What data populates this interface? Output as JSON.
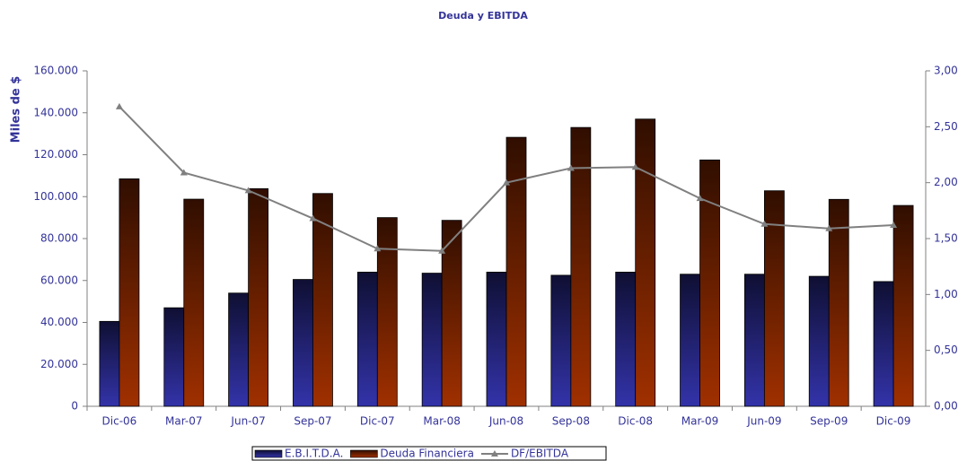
{
  "chart_data": {
    "type": "bar",
    "title": "Deuda y EBITDA",
    "y_label": "Miles de $",
    "categories": [
      "Dic-06",
      "Mar-07",
      "Jun-07",
      "Sep-07",
      "Dic-07",
      "Mar-08",
      "Jun-08",
      "Sep-08",
      "Dic-08",
      "Mar-09",
      "Jun-09",
      "Sep-09",
      "Dic-09"
    ],
    "series": [
      {
        "name": "E.B.I.T.D.A.",
        "type": "bar",
        "color": "#3333aa",
        "values": [
          40500,
          47000,
          54000,
          60500,
          64000,
          63500,
          64000,
          62500,
          64000,
          63000,
          63000,
          62000,
          59500
        ]
      },
      {
        "name": "Deuda Financiera",
        "type": "bar",
        "color": "#a03000",
        "values": [
          108500,
          98800,
          103800,
          101500,
          90000,
          88700,
          128300,
          133000,
          137000,
          117500,
          102800,
          98700,
          95800
        ]
      },
      {
        "name": "DF/EBITDA",
        "type": "line",
        "axis": "y2",
        "color": "#808080",
        "values": [
          2.68,
          2.09,
          1.93,
          1.68,
          1.41,
          1.39,
          2.0,
          2.13,
          2.14,
          1.86,
          1.63,
          1.59,
          1.62
        ]
      }
    ],
    "ylim": [
      0,
      160000
    ],
    "yticks": [
      0,
      {
        "value": 20000,
        "label": "20.000"
      },
      {
        "value": 40000,
        "label": "40.000"
      },
      {
        "value": 60000,
        "label": "60.000"
      },
      {
        "value": 80000,
        "label": "80.000"
      },
      {
        "value": 100000,
        "label": "100.000"
      },
      {
        "value": 120000,
        "label": "120.000"
      },
      {
        "value": 140000,
        "label": "140.000"
      },
      {
        "value": 160000,
        "label": "160.000"
      }
    ],
    "y2lim": [
      0,
      3
    ],
    "y2ticks": [
      {
        "value": 0,
        "label": "0,00"
      },
      {
        "value": 0.5,
        "label": "0,50"
      },
      {
        "value": 1,
        "label": "1,00"
      },
      {
        "value": 1.5,
        "label": "1,50"
      },
      {
        "value": 2,
        "label": "2,00"
      },
      {
        "value": 2.5,
        "label": "2,50"
      },
      {
        "value": 3,
        "label": "3,00"
      }
    ],
    "grid": false,
    "legend": "bottom"
  }
}
